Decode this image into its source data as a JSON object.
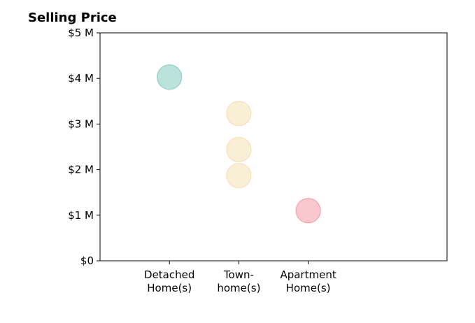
{
  "chart_data": {
    "type": "scatter",
    "title": "Selling Price",
    "xlabel": "",
    "ylabel": "",
    "categories": [
      [
        "Detached",
        "Home(s)"
      ],
      [
        "Town-",
        "home(s)"
      ],
      [
        "Apartment",
        "Home(s)"
      ]
    ],
    "y_ticks": [
      {
        "value": 0,
        "label": "$0"
      },
      {
        "value": 1,
        "label": "$1 M"
      },
      {
        "value": 2,
        "label": "$2 M"
      },
      {
        "value": 3,
        "label": "$3 M"
      },
      {
        "value": 4,
        "label": "$4 M"
      },
      {
        "value": 5,
        "label": "$5 M"
      }
    ],
    "ylim": [
      0,
      5
    ],
    "grid": false,
    "points": [
      {
        "category": 0,
        "value": 4.03,
        "color": "#8ecfc6"
      },
      {
        "category": 1,
        "value": 3.23,
        "color": "#f5e2bb"
      },
      {
        "category": 1,
        "value": 2.44,
        "color": "#f5e2bb"
      },
      {
        "category": 1,
        "value": 1.87,
        "color": "#f5e2bb"
      },
      {
        "category": 2,
        "value": 1.1,
        "color": "#f4a3ad"
      }
    ]
  }
}
